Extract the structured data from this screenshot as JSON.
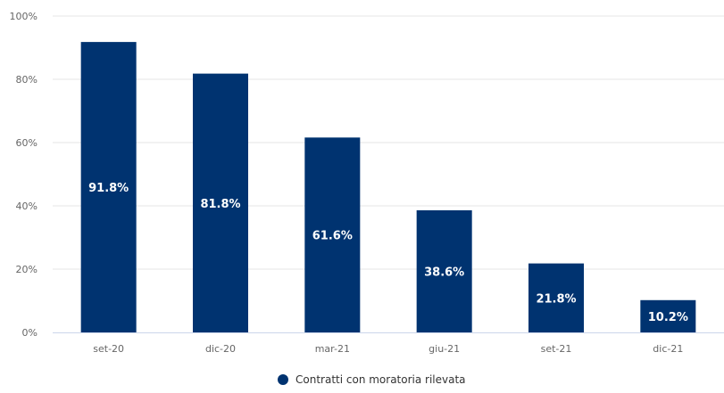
{
  "chart_data": {
    "type": "bar",
    "categories": [
      "set-20",
      "dic-20",
      "mar-21",
      "giu-21",
      "set-21",
      "dic-21"
    ],
    "series": [
      {
        "name": "Contratti con moratoria rilevata",
        "values": [
          91.8,
          81.8,
          61.6,
          38.6,
          21.8,
          10.2
        ],
        "data_labels": [
          "91.8%",
          "81.8%",
          "61.6%",
          "38.6%",
          "21.8%",
          "10.2%"
        ],
        "color": "#003370"
      }
    ],
    "ylim": [
      0,
      100
    ],
    "yticks": [
      "0%",
      "20%",
      "40%",
      "60%",
      "80%",
      "100%"
    ],
    "ytick_values": [
      0,
      20,
      40,
      60,
      80,
      100
    ],
    "grid": true,
    "legend": "bottom-center"
  }
}
